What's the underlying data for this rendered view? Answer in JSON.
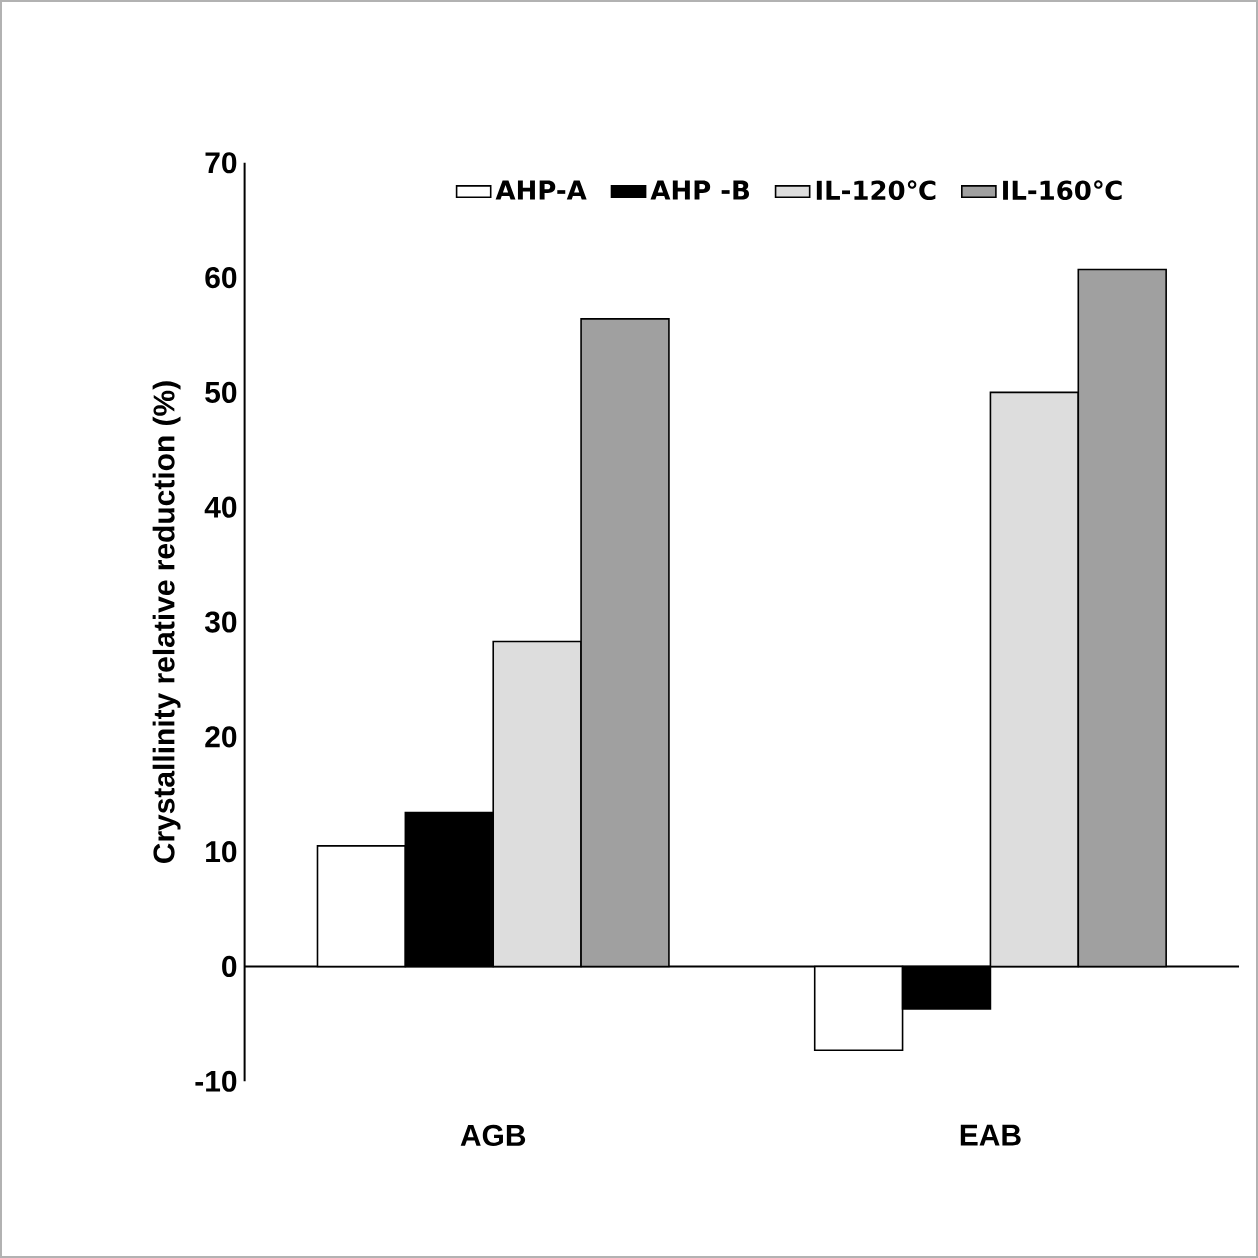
{
  "chart_data": {
    "type": "bar",
    "ylabel": "Crystallinity relative reduction (%)",
    "categories": [
      "AGB",
      "EAB"
    ],
    "series": [
      {
        "name": "AHP-A",
        "color": "#ffffff",
        "values": [
          10.5,
          -7.3
        ]
      },
      {
        "name": "AHP -B",
        "color": "#000000",
        "values": [
          13.4,
          -3.7
        ]
      },
      {
        "name": "IL-120℃",
        "color": "#dddddd",
        "values": [
          28.3,
          50.0
        ]
      },
      {
        "name": "IL-160℃",
        "color": "#a0a0a0",
        "values": [
          56.4,
          60.7
        ]
      }
    ],
    "ylim": [
      -10,
      70
    ],
    "yticks": [
      -10,
      0,
      10,
      20,
      30,
      40,
      50,
      60,
      70
    ],
    "legend": "top"
  }
}
